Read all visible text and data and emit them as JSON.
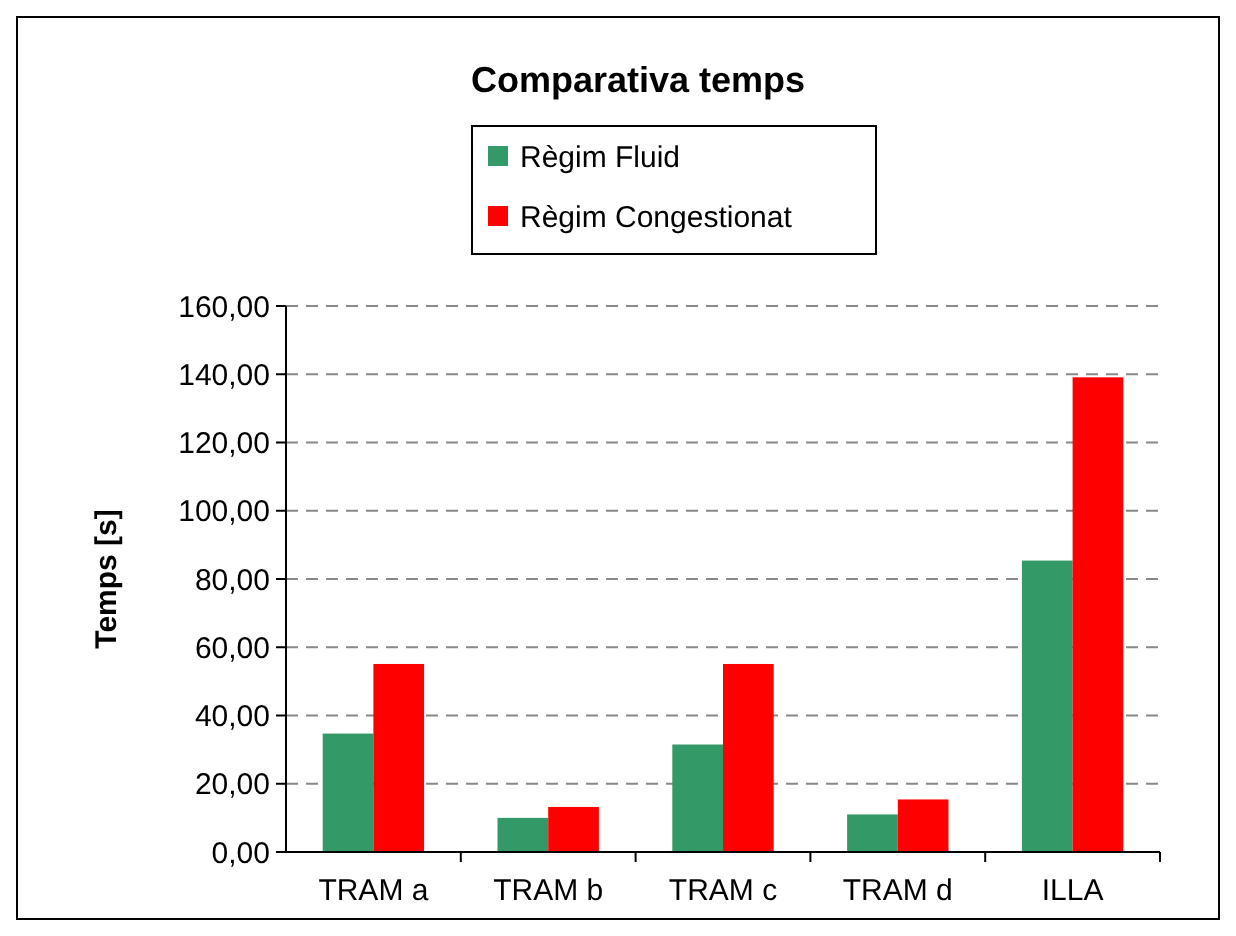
{
  "chart_data": {
    "type": "bar",
    "title": "Comparativa temps",
    "ylabel": "Temps [s]",
    "categories": [
      "TRAM a",
      "TRAM b",
      "TRAM c",
      "TRAM d",
      "ILLA"
    ],
    "series": [
      {
        "name": "Règim Fluid",
        "color": "#339966",
        "values": [
          34.7,
          10.0,
          31.5,
          11.0,
          85.4
        ]
      },
      {
        "name": "Règim Congestionat",
        "color": "#ff0000",
        "values": [
          55.1,
          13.2,
          55.1,
          15.4,
          139.1
        ]
      }
    ],
    "ylim": [
      0,
      160
    ],
    "yticks": [
      {
        "value": 0,
        "label": "0,00"
      },
      {
        "value": 20,
        "label": "20,00"
      },
      {
        "value": 40,
        "label": "40,00"
      },
      {
        "value": 60,
        "label": "60,00"
      },
      {
        "value": 80,
        "label": "80,00"
      },
      {
        "value": 100,
        "label": "100,00"
      },
      {
        "value": 120,
        "label": "120,00"
      },
      {
        "value": 140,
        "label": "140,00"
      },
      {
        "value": 160,
        "label": "160,00"
      }
    ],
    "grid": "y",
    "legend": "top"
  }
}
